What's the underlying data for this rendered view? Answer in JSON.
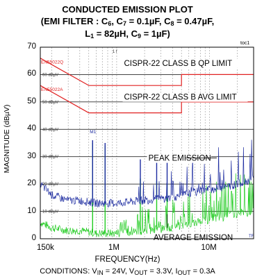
{
  "title": {
    "line1": "CONDUCTED EMISSION PLOT",
    "line2_prefix": "(EMI FILTER : C",
    "c6": "6",
    "line2_mid1": ", C",
    "c7": "7",
    "line2_mid2": " = 0.1µF, C",
    "c8": "8",
    "line2_suffix": " = 0.47µF,",
    "line3_l": "L",
    "l1": "1",
    "line3_mid": " = 82µH, C",
    "c9": "9",
    "line3_suffix": " = 1µF)"
  },
  "corner_tag": "toc1",
  "conditions": {
    "prefix": "CONDITIONS: V",
    "vin_sub": "IN",
    "vin_val": " = 24V, V",
    "vout_sub": "OUT",
    "vout_val": " = 3.3V, I",
    "iout_sub": "OUT",
    "iout_val": " = 0.3A"
  },
  "chart_data": {
    "type": "line",
    "title": "CONDUCTED EMISSION PLOT",
    "xlabel": "FREQUENCY(Hz)",
    "ylabel": "MAGNITUDE (dBµV)",
    "x_scale": "log",
    "xlim": [
      150000,
      30000000
    ],
    "ylim": [
      0,
      70
    ],
    "x_ticks": [
      "150k",
      "1M",
      "10M"
    ],
    "y_ticks": [
      "0",
      "10",
      "20",
      "30",
      "40",
      "50",
      "60",
      "70"
    ],
    "grid": true,
    "series": [
      {
        "name": "CISPR-22 CLASS B QP LIMIT",
        "color": "#e02020",
        "x": [
          150000,
          500000,
          500000,
          5000000,
          5000000,
          30000000
        ],
        "y": [
          66,
          56,
          56,
          56,
          60,
          60
        ]
      },
      {
        "name": "CISPR-22 CLASS B AVG LIMIT",
        "color": "#e02020",
        "x": [
          150000,
          500000,
          500000,
          5000000,
          5000000,
          30000000
        ],
        "y": [
          56,
          46,
          46,
          46,
          50,
          50
        ]
      },
      {
        "name": "PEAK EMISSION",
        "color": "#1c2ba0",
        "x": [
          150000,
          200000,
          300000,
          400000,
          600000,
          1000000,
          2000000,
          4000000,
          7000000,
          10000000,
          15000000,
          20000000,
          30000000
        ],
        "y": [
          20,
          16,
          14,
          14,
          13,
          13,
          14,
          15,
          17,
          18,
          19,
          20,
          22
        ],
        "spikes": [
          {
            "x": 550000,
            "y": 36
          },
          {
            "x": 750000,
            "y": 35
          },
          {
            "x": 1800000,
            "y": 29
          },
          {
            "x": 2700000,
            "y": 28
          },
          {
            "x": 3500000,
            "y": 28
          }
        ]
      },
      {
        "name": "AVERAGE EMISSION",
        "color": "#22cc22",
        "x": [
          150000,
          200000,
          300000,
          400000,
          600000,
          1000000,
          2000000,
          4000000,
          7000000,
          10000000,
          15000000,
          20000000,
          30000000
        ],
        "y": [
          6,
          4,
          3,
          3,
          2,
          2,
          3,
          4,
          6,
          7,
          8,
          9,
          10
        ],
        "spikes": [
          {
            "x": 550000,
            "y": 35
          },
          {
            "x": 750000,
            "y": 34
          },
          {
            "x": 1800000,
            "y": 22
          },
          {
            "x": 2700000,
            "y": 21
          },
          {
            "x": 3500000,
            "y": 20
          }
        ]
      }
    ],
    "annotations": [
      {
        "text": "CISPR-22 CLASS B QP LIMIT"
      },
      {
        "text": "CISPR-22 CLASS B AVG LIMIT"
      },
      {
        "text": "PEAK EMISSION"
      },
      {
        "text": "AVERAGE EMISSION"
      }
    ],
    "analyzer_labels": {
      "limit_qp": "EN55022Q",
      "limit_avg": "EN55022A",
      "ref_levels": [
        "60 dBµV",
        "50 dBµV",
        "40 dBµV",
        "30 dBµV",
        "20 dBµV",
        "10 dBµV"
      ],
      "marker": "M1",
      "trace_tag": "1 f",
      "corner": "TF"
    }
  }
}
